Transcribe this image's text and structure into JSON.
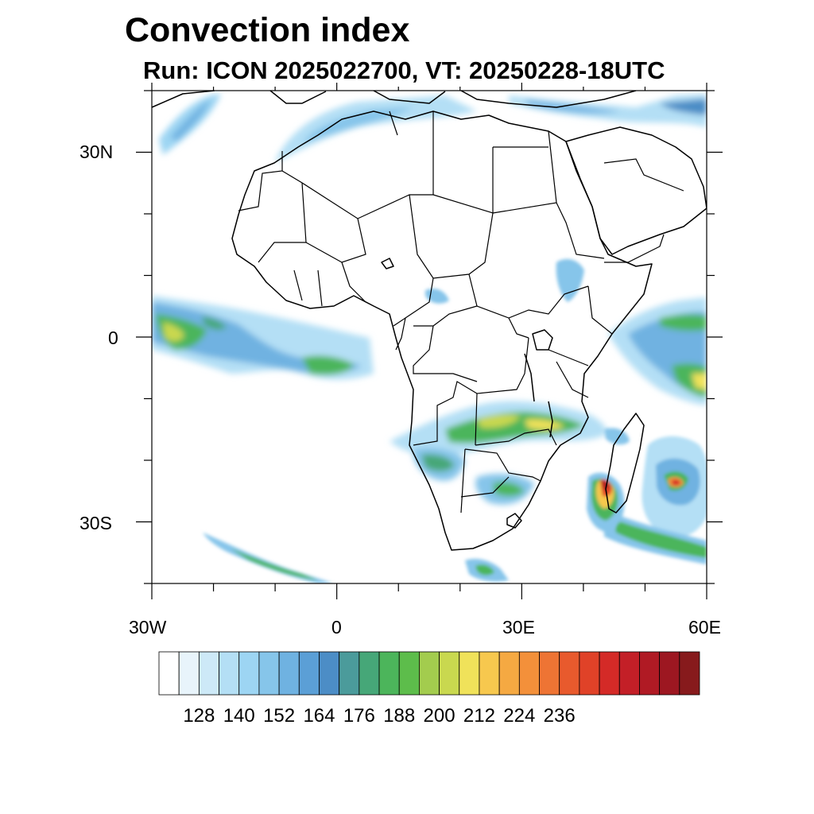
{
  "title": "Convection index",
  "subtitle": "Run: ICON 2025022700,  VT: 20250228-18UTC",
  "map": {
    "lon_range": [
      -30,
      60
    ],
    "lat_range": [
      -40,
      40
    ],
    "y_tick_labels": [
      "30N",
      "0",
      "30S"
    ],
    "x_tick_labels": [
      "30W",
      "0",
      "30E",
      "60E"
    ],
    "fill_regions": [
      "South-west Indian Ocean cyclone near Madagascar",
      "Mozambique Channel storm",
      "Equatorial Atlantic band",
      "Southern Africa convective band",
      "Western Indian Ocean band",
      "Mediterranean / North Africa band"
    ]
  },
  "colorbar": {
    "colors": [
      "#ffffff",
      "#e8f4fb",
      "#cde9f7",
      "#b4dff5",
      "#9dd5f3",
      "#86c5ea",
      "#6fb2e1",
      "#5b9fd6",
      "#4c8dc6",
      "#4b9b9b",
      "#46a778",
      "#4cb55b",
      "#5dbd4b",
      "#a3cc4e",
      "#c9d84f",
      "#f0e25a",
      "#f7c84e",
      "#f5a942",
      "#f3903a",
      "#ee7434",
      "#e85a2d",
      "#e04228",
      "#d42a27",
      "#c31f27",
      "#b01a24",
      "#9d1721",
      "#871a1c"
    ],
    "labels": [
      "128",
      "140",
      "152",
      "164",
      "176",
      "188",
      "200",
      "212",
      "224",
      "236"
    ]
  }
}
